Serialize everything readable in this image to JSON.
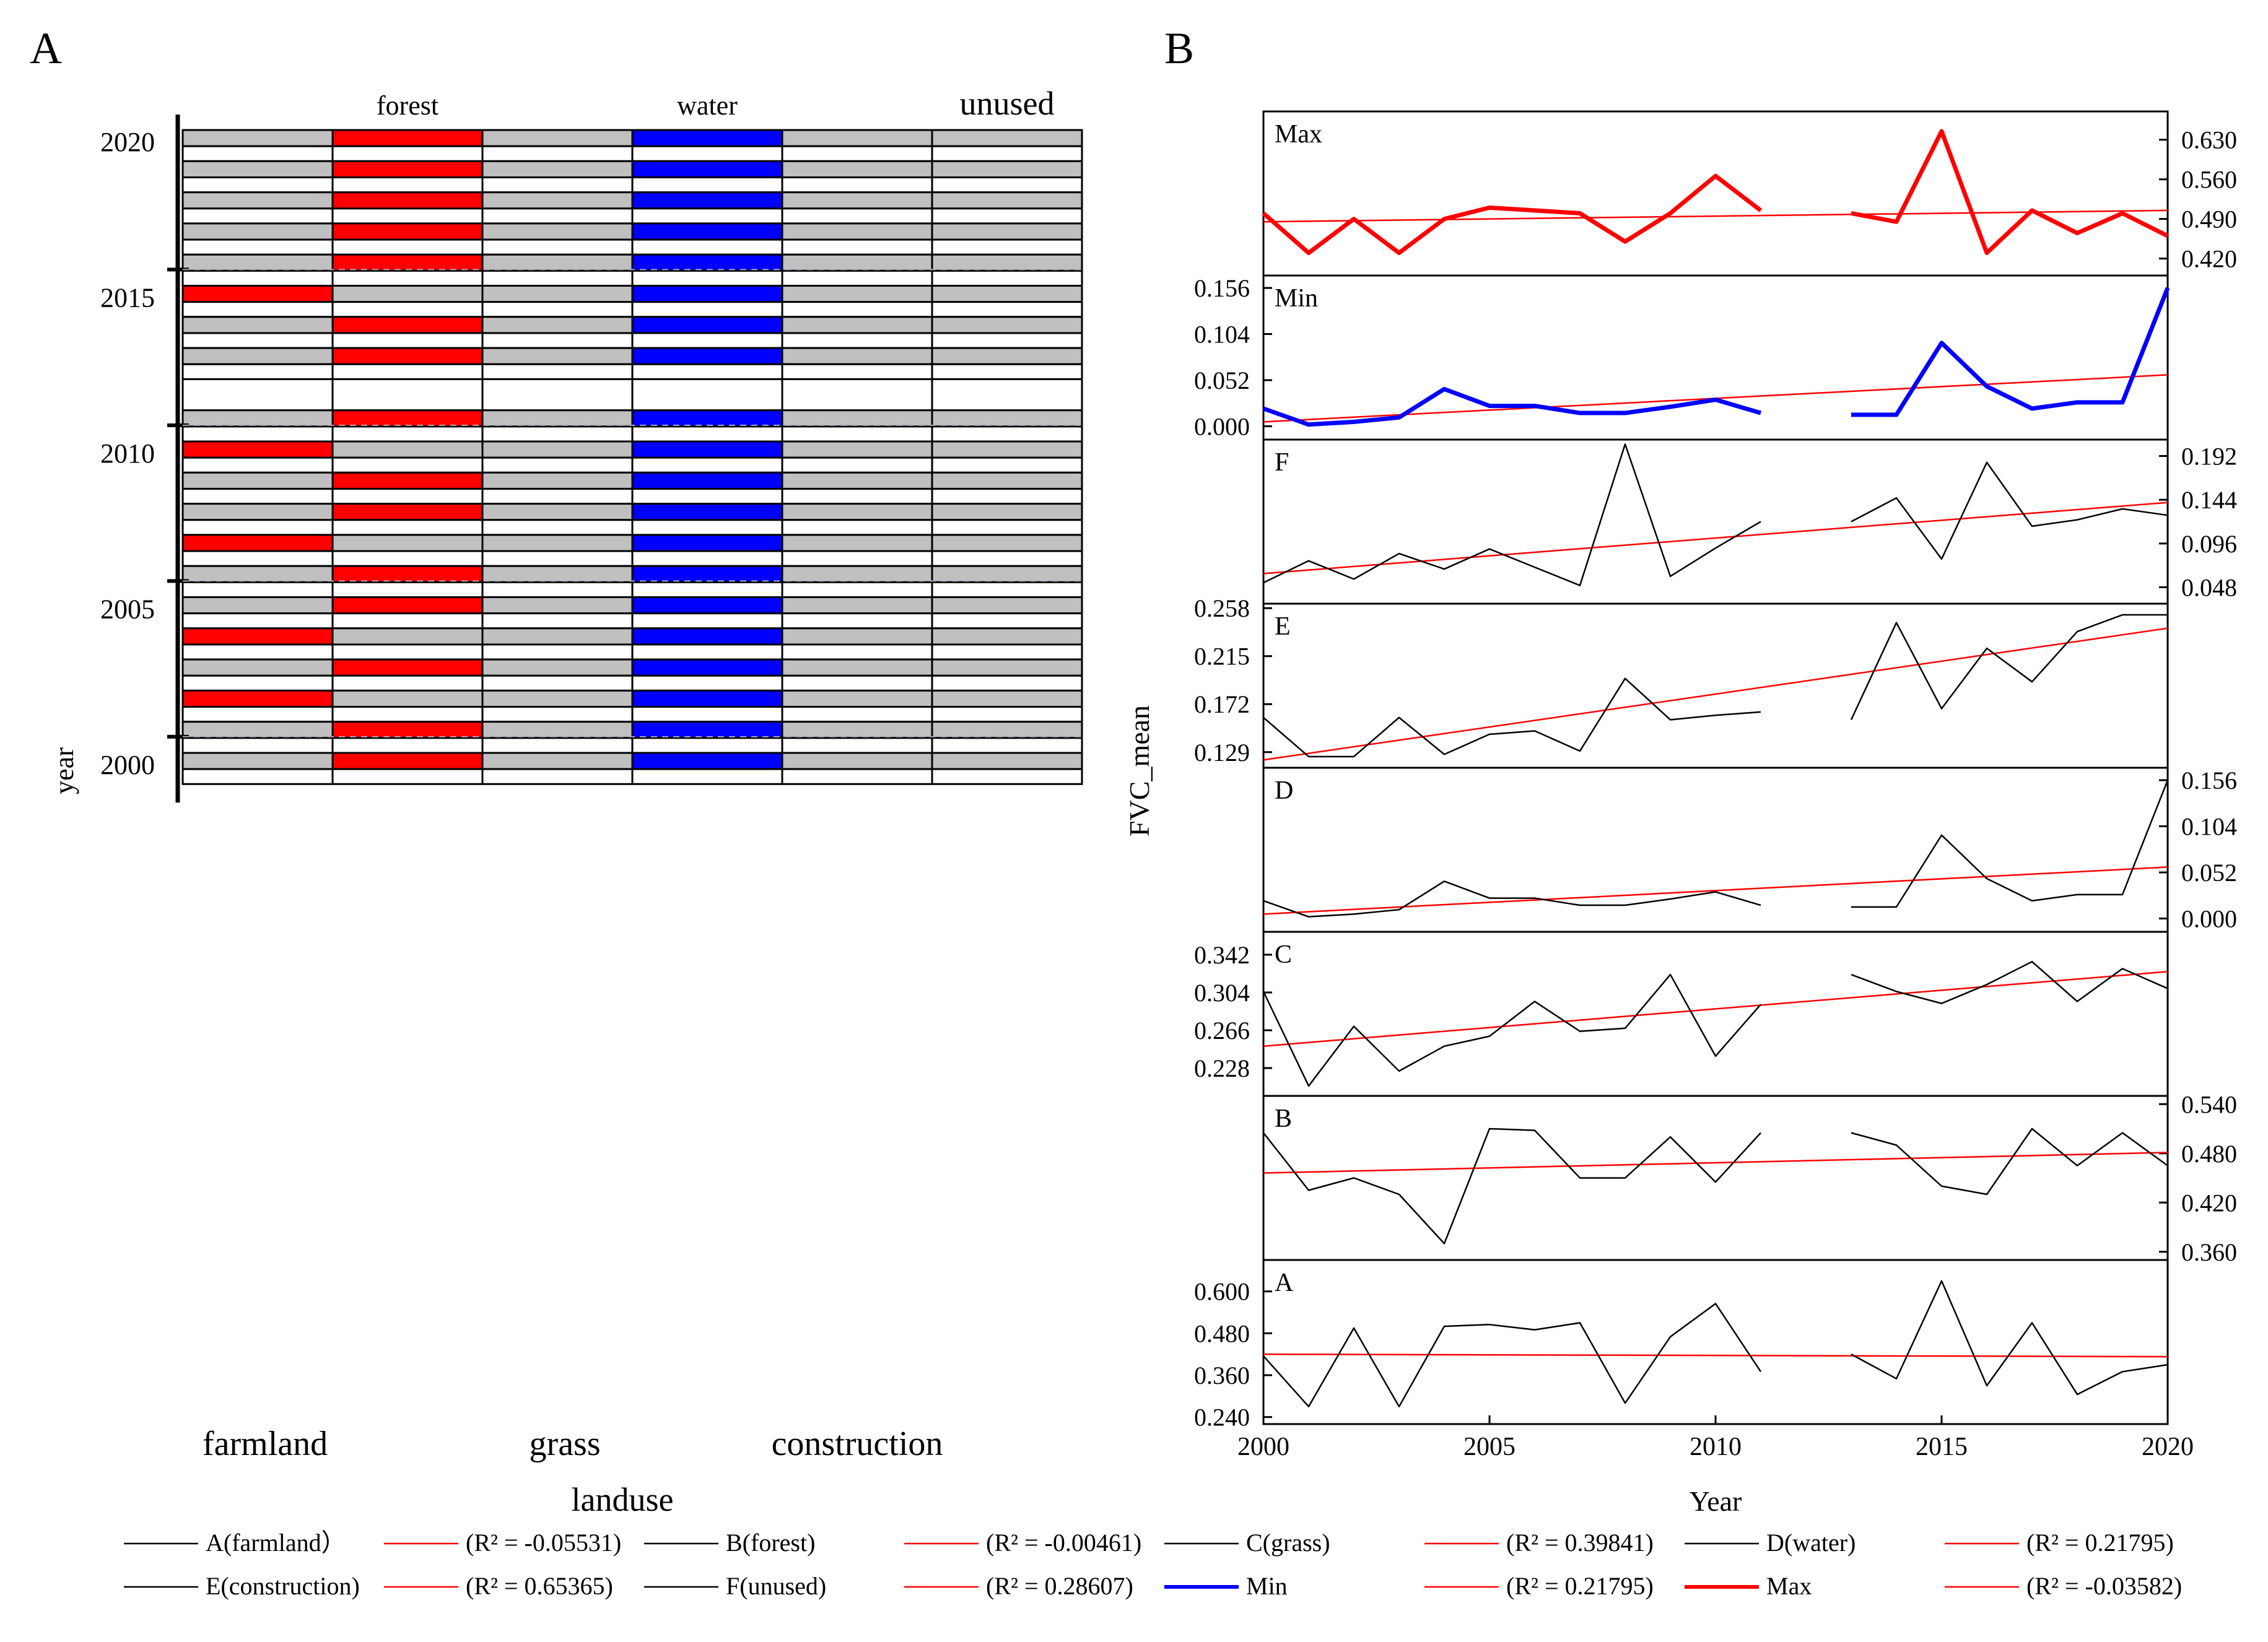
{
  "figure": {
    "panel_a_label": "A",
    "panel_b_label": "B"
  },
  "chart_data": [
    {
      "type": "heatmap",
      "panel": "A",
      "xlabel": "landuse",
      "ylabel": "year",
      "columns_top": [
        "forest",
        "water",
        "unused"
      ],
      "columns_bottom": [
        "farmland",
        "grass",
        "construction"
      ],
      "columns": [
        "farmland",
        "forest",
        "grass",
        "water",
        "construction",
        "unused"
      ],
      "yticks": [
        "2020",
        "2015",
        "2010",
        "2005",
        "2000"
      ],
      "colors": {
        "farmland": "#ff0000",
        "forest": "#ff0000",
        "water": "#0000ff",
        "other": "#c0c0c0",
        "empty": "#ffffff"
      },
      "rows": [
        {
          "year": 2020,
          "cells": [
            0,
            1,
            0,
            2,
            0,
            0
          ]
        },
        {
          "year": 2019,
          "cells": [
            0,
            1,
            0,
            2,
            0,
            0
          ]
        },
        {
          "year": 2018,
          "cells": [
            0,
            1,
            0,
            2,
            0,
            0
          ]
        },
        {
          "year": 2017,
          "cells": [
            0,
            1,
            0,
            2,
            0,
            0
          ]
        },
        {
          "year": 2016,
          "cells": [
            0,
            1,
            0,
            2,
            0,
            0
          ]
        },
        {
          "year": 2015,
          "cells": [
            1,
            0,
            0,
            2,
            0,
            0
          ]
        },
        {
          "year": 2014,
          "cells": [
            0,
            1,
            0,
            2,
            0,
            0
          ]
        },
        {
          "year": 2013,
          "cells": [
            0,
            1,
            0,
            2,
            0,
            0
          ]
        },
        {
          "year": 2012,
          "cells": null
        },
        {
          "year": 2011,
          "cells": [
            0,
            1,
            0,
            2,
            0,
            0
          ]
        },
        {
          "year": 2010,
          "cells": [
            1,
            0,
            0,
            2,
            0,
            0
          ]
        },
        {
          "year": 2009,
          "cells": [
            0,
            1,
            0,
            2,
            0,
            0
          ]
        },
        {
          "year": 2008,
          "cells": [
            0,
            1,
            0,
            2,
            0,
            0
          ]
        },
        {
          "year": 2007,
          "cells": [
            1,
            0,
            0,
            2,
            0,
            0
          ]
        },
        {
          "year": 2006,
          "cells": [
            0,
            1,
            0,
            2,
            0,
            0
          ]
        },
        {
          "year": 2005,
          "cells": [
            0,
            1,
            0,
            2,
            0,
            0
          ]
        },
        {
          "year": 2004,
          "cells": [
            1,
            0,
            0,
            2,
            0,
            0
          ]
        },
        {
          "year": 2003,
          "cells": [
            0,
            1,
            0,
            2,
            0,
            0
          ]
        },
        {
          "year": 2002,
          "cells": [
            1,
            0,
            0,
            2,
            0,
            0
          ]
        },
        {
          "year": 2001,
          "cells": [
            0,
            1,
            0,
            2,
            0,
            0
          ]
        },
        {
          "year": 2000,
          "cells": [
            0,
            1,
            0,
            2,
            0,
            0
          ]
        }
      ]
    },
    {
      "type": "line",
      "panel": "B",
      "xlabel": "Year",
      "ylabel": "FVC_mean",
      "x": [
        2000,
        2001,
        2002,
        2003,
        2004,
        2005,
        2006,
        2007,
        2008,
        2009,
        2010,
        2011,
        2012,
        2013,
        2014,
        2015,
        2016,
        2017,
        2018,
        2019,
        2020
      ],
      "xticks": [
        "2000",
        "2005",
        "2010",
        "2015",
        "2020"
      ],
      "xlim": [
        2000,
        2020
      ],
      "subplots": [
        {
          "label": "Max",
          "color": "#ff0000",
          "width": 7,
          "ylim": [
            0.39,
            0.68
          ],
          "yaxis": "right",
          "yticks": [
            "0.420",
            "0.490",
            "0.560",
            "0.630"
          ],
          "values": [
            0.5,
            0.43,
            0.49,
            0.43,
            0.49,
            0.51,
            0.505,
            0.5,
            0.45,
            0.5,
            0.566,
            0.505,
            null,
            0.5,
            0.485,
            0.645,
            0.43,
            0.505,
            0.465,
            0.5,
            0.46
          ],
          "trend": [
            0.485,
            0.505
          ]
        },
        {
          "label": "Min",
          "color": "#0000ff",
          "width": 7,
          "ylim": [
            -0.015,
            0.17
          ],
          "yaxis": "left",
          "yticks": [
            "0.000",
            "0.052",
            "0.104",
            "0.156"
          ],
          "values": [
            0.02,
            0.002,
            0.005,
            0.01,
            0.042,
            0.023,
            0.023,
            0.015,
            0.015,
            0.022,
            0.03,
            0.015,
            null,
            0.013,
            0.013,
            0.094,
            0.045,
            0.02,
            0.027,
            0.027,
            0.156
          ],
          "trend": [
            0.005,
            0.058
          ]
        },
        {
          "label": "F",
          "color": "#000000",
          "width": 2.5,
          "ylim": [
            0.03,
            0.21
          ],
          "yaxis": "right",
          "yticks": [
            "0.048",
            "0.096",
            "0.144",
            "0.192"
          ],
          "values": [
            0.053,
            0.077,
            0.057,
            0.085,
            0.068,
            0.09,
            0.07,
            0.05,
            0.205,
            0.06,
            0.091,
            0.12,
            null,
            0.12,
            0.146,
            0.079,
            0.185,
            0.115,
            0.122,
            0.134,
            0.127
          ],
          "trend": [
            0.063,
            0.141
          ]
        },
        {
          "label": "E",
          "color": "#000000",
          "width": 2.5,
          "ylim": [
            0.115,
            0.262
          ],
          "yaxis": "left",
          "yticks": [
            "0.129",
            "0.172",
            "0.215",
            "0.258"
          ],
          "values": [
            0.16,
            0.125,
            0.125,
            0.16,
            0.127,
            0.145,
            0.148,
            0.13,
            0.195,
            0.158,
            0.162,
            0.165,
            null,
            0.158,
            0.245,
            0.168,
            0.222,
            0.192,
            0.237,
            0.252,
            0.252
          ],
          "trend": [
            0.122,
            0.24
          ]
        },
        {
          "label": "D",
          "color": "#000000",
          "width": 2.5,
          "ylim": [
            -0.015,
            0.17
          ],
          "yaxis": "right",
          "yticks": [
            "0.000",
            "0.052",
            "0.104",
            "0.156"
          ],
          "values": [
            0.02,
            0.002,
            0.005,
            0.01,
            0.042,
            0.023,
            0.023,
            0.015,
            0.015,
            0.022,
            0.03,
            0.015,
            null,
            0.013,
            0.013,
            0.094,
            0.045,
            0.02,
            0.027,
            0.027,
            0.156
          ],
          "trend": [
            0.005,
            0.058
          ]
        },
        {
          "label": "C",
          "color": "#000000",
          "width": 2.5,
          "ylim": [
            0.2,
            0.365
          ],
          "yaxis": "left",
          "yticks": [
            "0.228",
            "0.266",
            "0.304",
            "0.342"
          ],
          "values": [
            0.305,
            0.21,
            0.27,
            0.225,
            0.25,
            0.26,
            0.295,
            0.265,
            0.268,
            0.322,
            0.24,
            0.292,
            null,
            0.322,
            0.305,
            0.293,
            0.312,
            0.335,
            0.295,
            0.328,
            0.308
          ],
          "trend": [
            0.25,
            0.325
          ]
        },
        {
          "label": "B",
          "color": "#000000",
          "width": 2.5,
          "ylim": [
            0.35,
            0.55
          ],
          "yaxis": "right",
          "yticks": [
            "0.360",
            "0.420",
            "0.480",
            "0.540"
          ],
          "values": [
            0.505,
            0.435,
            0.45,
            0.43,
            0.37,
            0.51,
            0.508,
            0.45,
            0.45,
            0.5,
            0.445,
            0.505,
            null,
            0.505,
            0.49,
            0.44,
            0.43,
            0.51,
            0.465,
            0.505,
            0.465
          ],
          "trend": [
            0.456,
            0.481
          ]
        },
        {
          "label": "A",
          "color": "#000000",
          "width": 2.5,
          "ylim": [
            0.22,
            0.69
          ],
          "yaxis": "left",
          "yticks": [
            "0.240",
            "0.360",
            "0.480",
            "0.600"
          ],
          "values": [
            0.415,
            0.27,
            0.495,
            0.27,
            0.5,
            0.505,
            0.49,
            0.51,
            0.28,
            0.47,
            0.565,
            0.37,
            null,
            0.42,
            0.35,
            0.63,
            0.33,
            0.51,
            0.305,
            0.37,
            0.39
          ],
          "trend": [
            0.42,
            0.413
          ]
        }
      ],
      "legend": {
        "row1": [
          {
            "label": "A(farmland）",
            "color": "#000000"
          },
          {
            "label": "(R² = -0.05531)",
            "color": "#ff0000"
          },
          {
            "label": "B(forest)",
            "color": "#000000"
          },
          {
            "label": "(R² = -0.00461)",
            "color": "#ff0000"
          },
          {
            "label": "C(grass)",
            "color": "#000000"
          },
          {
            "label": "(R² =  0.39841)",
            "color": "#ff0000"
          },
          {
            "label": "D(water)",
            "color": "#000000"
          },
          {
            "label": "(R² =  0.21795)",
            "color": "#ff0000"
          }
        ],
        "row2": [
          {
            "label": "E(construction)",
            "color": "#000000"
          },
          {
            "label": "(R² =  0.65365)",
            "color": "#ff0000"
          },
          {
            "label": "F(unused)",
            "color": "#000000"
          },
          {
            "label": "(R² =  0.28607)",
            "color": "#ff0000"
          },
          {
            "label": "Min",
            "color": "#0000ff"
          },
          {
            "label": "(R² = 0.21795)",
            "color": "#ff0000"
          },
          {
            "label": "Max",
            "color": "#ff0000"
          },
          {
            "label": "(R² = -0.03582)",
            "color": "#ff0000"
          }
        ]
      }
    }
  ]
}
